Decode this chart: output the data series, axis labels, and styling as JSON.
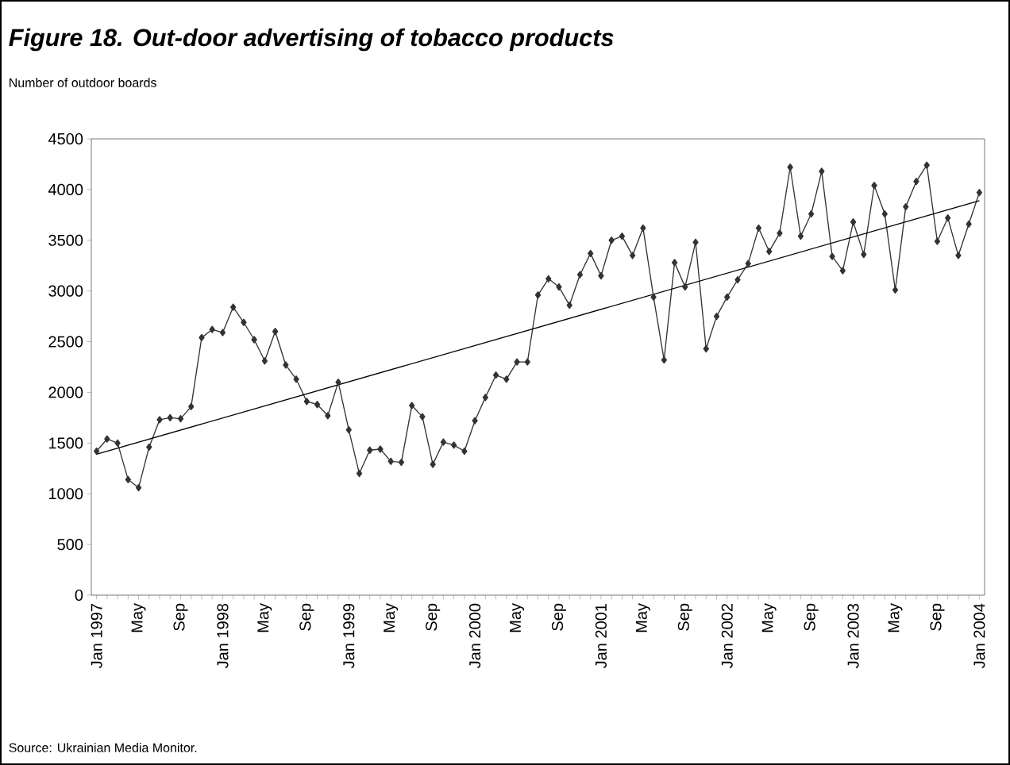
{
  "chart_data": {
    "type": "line",
    "title": "Figure 18. Out-door advertising of tobacco products",
    "ylabel": "Number of outdoor boards",
    "categories": [
      "Jan 1997",
      null,
      null,
      null,
      "May",
      null,
      null,
      null,
      "Sep",
      null,
      null,
      null,
      "Jan 1998",
      null,
      null,
      null,
      "May",
      null,
      null,
      null,
      "Sep",
      null,
      null,
      null,
      "Jan 1999",
      null,
      null,
      null,
      "May",
      null,
      null,
      null,
      "Sep",
      null,
      null,
      null,
      "Jan 2000",
      null,
      null,
      null,
      "May",
      null,
      null,
      null,
      "Sep",
      null,
      null,
      null,
      "Jan 2001",
      null,
      null,
      null,
      "May",
      null,
      null,
      null,
      "Sep",
      null,
      null,
      null,
      "Jan 2002",
      null,
      null,
      null,
      "May",
      null,
      null,
      null,
      "Sep",
      null,
      null,
      null,
      "Jan 2003",
      null,
      null,
      null,
      "May",
      null,
      null,
      null,
      "Sep",
      null,
      null,
      null,
      "Jan 2004"
    ],
    "series": [
      {
        "color": "#333333",
        "marker": "diamond",
        "values": [
          1420,
          1540,
          1500,
          1140,
          1060,
          1460,
          1730,
          1750,
          1740,
          1860,
          2540,
          2620,
          2590,
          2840,
          2690,
          2520,
          2310,
          2600,
          2270,
          2130,
          1910,
          1880,
          1770,
          2100,
          1630,
          1200,
          1430,
          1440,
          1320,
          1310,
          1870,
          1760,
          1290,
          1510,
          1480,
          1420,
          1720,
          1950,
          2170,
          2130,
          2300,
          2300,
          2960,
          3120,
          3040,
          2860,
          3160,
          3370,
          3150,
          3500,
          3540,
          3350,
          3620,
          2940,
          2320,
          3280,
          3040,
          3480,
          2430,
          2750,
          2940,
          3110,
          3270,
          3620,
          3390,
          3570,
          4220,
          3540,
          3760,
          4180,
          3340,
          3200,
          3680,
          3360,
          4040,
          3760,
          3010,
          3830,
          4080,
          4240,
          3490,
          3720,
          3350,
          3660,
          3970
        ]
      },
      {
        "type": "line",
        "color": "#000000",
        "marker": "none",
        "x": [
          "Jan 1997",
          "Jan 2004"
        ],
        "values": [
          1390,
          3890
        ]
      }
    ],
    "ylim": [
      0,
      4500
    ],
    "yticks": [
      0,
      500,
      1000,
      1500,
      2000,
      2500,
      3000,
      3500,
      4000,
      4500
    ],
    "grid": false,
    "annotations": [
      "Source: Ukrainian Media Monitor."
    ]
  }
}
